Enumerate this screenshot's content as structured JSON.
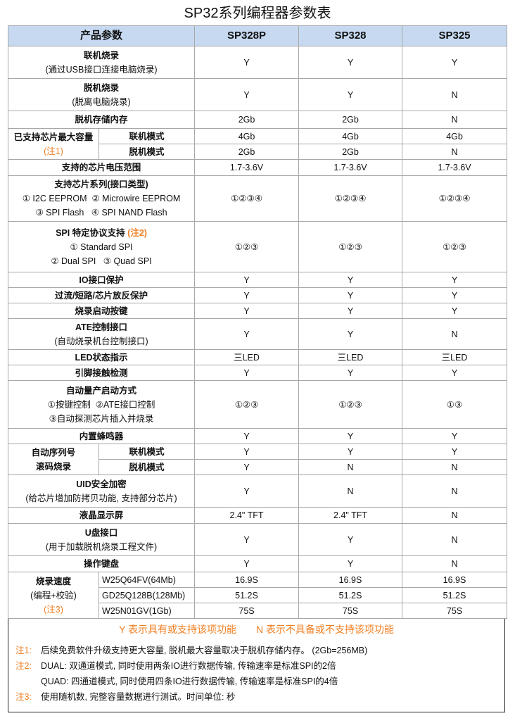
{
  "title": "SP32系列编程器参数表",
  "colors": {
    "header_bg": "#c6d9f1",
    "note_orange": "#f07f22"
  },
  "headers": [
    "产品参数",
    "SP328P",
    "SP328",
    "SP325"
  ],
  "rows": [
    {
      "title": "联机烧录",
      "lines": [
        "(通过USB接口连接电脑烧录)"
      ],
      "values": [
        "Y",
        "Y",
        "Y"
      ],
      "h": 46
    },
    {
      "title": "脱机烧录",
      "lines": [
        "(脱离电脑烧录)"
      ],
      "values": [
        "Y",
        "Y",
        "N"
      ],
      "h": 46
    },
    {
      "title": "脱机存储内存",
      "values": [
        "2Gb",
        "2Gb",
        "N"
      ],
      "h": 25
    },
    {
      "group": true,
      "title": "已支持芯片最大容量",
      "note": "(注1)",
      "subrows": [
        {
          "label": "联机模式",
          "values": [
            "4Gb",
            "4Gb",
            "4Gb"
          ]
        },
        {
          "label": "脱机模式",
          "values": [
            "2Gb",
            "2Gb",
            "N"
          ]
        }
      ],
      "h": 22
    },
    {
      "title": "支持的芯片电压范围",
      "values": [
        "1.7-3.6V",
        "1.7-3.6V",
        "1.7-3.6V"
      ],
      "h": 23
    },
    {
      "title": "支持芯片系列(接口类型)",
      "lines": [
        "① I2C EEPROM  ② Microwire EEPROM",
        "③ SPI Flash   ④ SPI NAND Flash"
      ],
      "values": [
        "①②③④",
        "①②③④",
        "①②③④"
      ],
      "h": 65
    },
    {
      "title": "SPI 特定协议支持",
      "title_note": " (注2)",
      "lines": [
        "① Standard SPI",
        "② Dual SPI   ③ Quad SPI"
      ],
      "values": [
        "①②③",
        "①②③",
        "①②③"
      ],
      "h": 72
    },
    {
      "title": "IO接口保护",
      "values": [
        "Y",
        "Y",
        "Y"
      ],
      "h": 22
    },
    {
      "title": "过流/短路/芯片放反保护",
      "values": [
        "Y",
        "Y",
        "Y"
      ],
      "h": 22
    },
    {
      "title": "烧录启动按键",
      "values": [
        "Y",
        "Y",
        "Y"
      ],
      "h": 22
    },
    {
      "title": "ATE控制接口",
      "lines": [
        "(自动烧录机台控制接口)"
      ],
      "values": [
        "Y",
        "Y",
        "N"
      ],
      "h": 44
    },
    {
      "title": "LED状态指示",
      "values": [
        "三LED",
        "三LED",
        "三LED"
      ],
      "h": 22
    },
    {
      "title": "引脚接触检测",
      "values": [
        "Y",
        "Y",
        "Y"
      ],
      "h": 22
    },
    {
      "title": "自动量产启动方式",
      "lines": [
        "①按键控制  ②ATE接口控制",
        "③自动探测芯片插入并烧录"
      ],
      "values": [
        "①②③",
        "①②③",
        "①③"
      ],
      "h": 68
    },
    {
      "title": "内置蜂鸣器",
      "values": [
        "Y",
        "Y",
        "Y"
      ],
      "h": 22
    },
    {
      "group": true,
      "title": "自动序列号",
      "title2": "滚码烧录",
      "subbold": true,
      "subrows": [
        {
          "label": "联机模式",
          "values": [
            "Y",
            "Y",
            "Y"
          ]
        },
        {
          "label": "脱机模式",
          "values": [
            "Y",
            "N",
            "N"
          ]
        }
      ],
      "h": 22
    },
    {
      "title": "UID安全加密",
      "lines": [
        "(给芯片增加防拷贝功能, 支持部分芯片)"
      ],
      "values": [
        "Y",
        "N",
        "N"
      ],
      "h": 46
    },
    {
      "title": "液晶显示屏",
      "values": [
        "2.4\" TFT",
        "2.4\" TFT",
        "N"
      ],
      "h": 23
    },
    {
      "title": "U盘接口",
      "lines": [
        "(用于加载脱机烧录工程文件)"
      ],
      "values": [
        "Y",
        "Y",
        "N"
      ],
      "h": 46
    },
    {
      "title": "操作键盘",
      "values": [
        "Y",
        "Y",
        "N"
      ],
      "h": 23
    },
    {
      "group": true,
      "title": "烧录速度",
      "sub": "(编程+校验)",
      "note": "(注3)",
      "subleft": true,
      "subrows": [
        {
          "label": "W25Q64FV(64Mb)",
          "values": [
            "16.9S",
            "16.9S",
            "16.9S"
          ]
        },
        {
          "label": "GD25Q128B(128Mb)",
          "values": [
            "51.2S",
            "51.2S",
            "51.2S"
          ]
        },
        {
          "label": "W25N01GV(1Gb)",
          "values": [
            "75S",
            "75S",
            "75S"
          ]
        }
      ],
      "h": 22
    }
  ],
  "legend": {
    "y": "Y  表示具有或支持该项功能",
    "n": "N  表示不具备或不支持该项功能"
  },
  "notes": [
    {
      "tag": "注1:",
      "text": "后续免费软件升级支持更大容量, 脱机最大容量取决于脱机存储内存。 (2Gb=256MB)"
    },
    {
      "tag": "注2:",
      "text": "DUAL: 双通道模式, 同时使用两条IO进行数据传输, 传输速率是标准SPI的2倍"
    },
    {
      "tag": "",
      "text": "QUAD: 四通道模式, 同时使用四条IO进行数据传输, 传输速率是标准SPI的4倍"
    },
    {
      "tag": "注3:",
      "text": "使用随机数, 完整容量数据进行测试。时间单位: 秒"
    }
  ]
}
